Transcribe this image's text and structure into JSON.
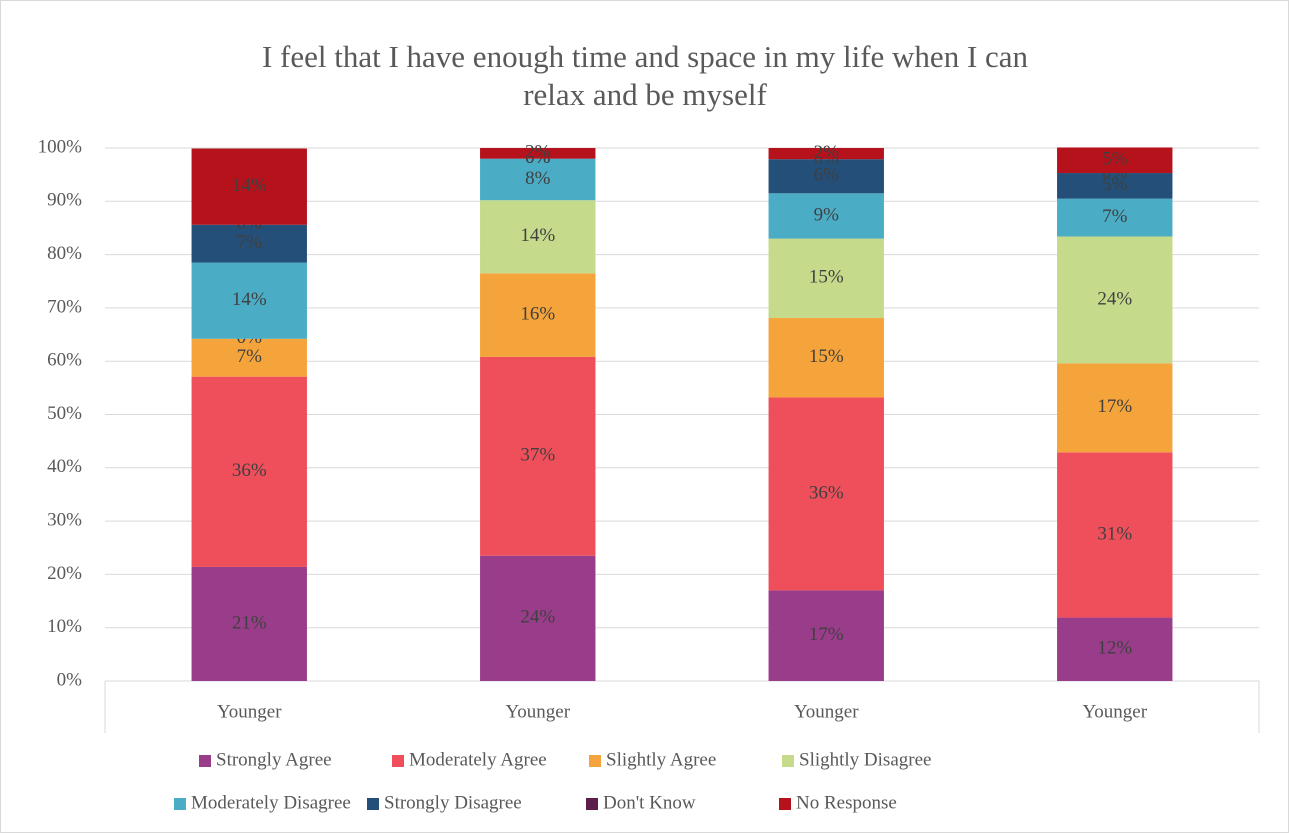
{
  "chart_data": {
    "type": "stacked_bar_100",
    "title": "I feel that I have enough time and space in my life when I can relax and be myself",
    "categories": [
      "Younger",
      "Younger",
      "Younger",
      "Younger"
    ],
    "series": [
      {
        "name": "Strongly Agree",
        "color": "#993d8a",
        "values": [
          21.4,
          23.5,
          17.0,
          11.9
        ],
        "value_labels": [
          "21%",
          "24%",
          "17%",
          "12%"
        ]
      },
      {
        "name": "Moderately Agree",
        "color": "#ef4f5b",
        "values": [
          35.7,
          37.3,
          36.2,
          31.0
        ],
        "value_labels": [
          "36%",
          "37%",
          "36%",
          "31%"
        ]
      },
      {
        "name": "Slightly Agree",
        "color": "#f4a43a",
        "values": [
          7.1,
          15.7,
          14.9,
          16.7
        ],
        "value_labels": [
          "7%",
          "16%",
          "15%",
          "17%"
        ]
      },
      {
        "name": "Slightly Disagree",
        "color": "#c5db8b",
        "values": [
          0,
          13.7,
          14.9,
          23.8
        ],
        "value_labels": [
          "0%",
          "14%",
          "15%",
          "24%"
        ]
      },
      {
        "name": "Moderately Disagree",
        "color": "#4bacc6",
        "values": [
          14.3,
          7.8,
          8.5,
          7.1
        ],
        "value_labels": [
          "14%",
          "8%",
          "9%",
          "7%"
        ]
      },
      {
        "name": "Strongly Disagree",
        "color": "#234f78",
        "values": [
          7.1,
          0,
          6.4,
          4.8
        ],
        "value_labels": [
          "7%",
          "0%",
          "6%",
          "5%"
        ]
      },
      {
        "name": "Don't Know",
        "color": "#5b1f4e",
        "values": [
          0,
          0,
          0,
          0
        ],
        "value_labels": [
          "0%",
          "0%",
          "0%",
          "0%"
        ]
      },
      {
        "name": "No Response",
        "color": "#b5121b",
        "values": [
          14.3,
          2.0,
          2.1,
          4.8
        ],
        "value_labels": [
          "14%",
          "2%",
          "2%",
          "5%"
        ]
      }
    ],
    "ylim": [
      0,
      100
    ],
    "yticks": [
      {
        "value": 0,
        "label": "0%"
      },
      {
        "value": 10,
        "label": "10%"
      },
      {
        "value": 20,
        "label": "20%"
      },
      {
        "value": 30,
        "label": "30%"
      },
      {
        "value": 40,
        "label": "40%"
      },
      {
        "value": 50,
        "label": "50%"
      },
      {
        "value": 60,
        "label": "60%"
      },
      {
        "value": 70,
        "label": "70%"
      },
      {
        "value": 80,
        "label": "80%"
      },
      {
        "value": 90,
        "label": "90%"
      },
      {
        "value": 100,
        "label": "100%"
      }
    ],
    "grid": true,
    "legend": "bottom"
  }
}
